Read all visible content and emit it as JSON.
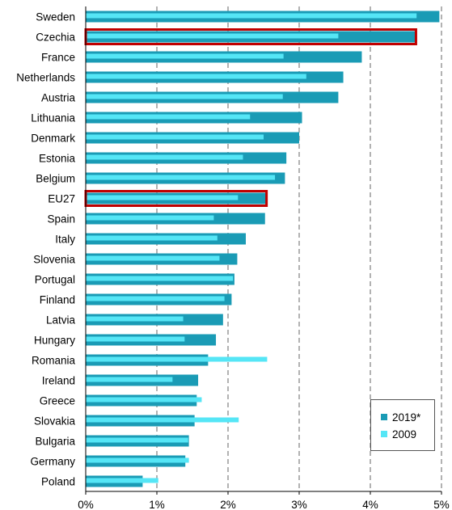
{
  "chart_data": {
    "type": "bar",
    "orientation": "horizontal",
    "categories": [
      "Sweden",
      "Czechia",
      "France",
      "Netherlands",
      "Austria",
      "Lithuania",
      "Denmark",
      "Estonia",
      "Belgium",
      "EU27",
      "Spain",
      "Italy",
      "Slovenia",
      "Portugal",
      "Finland",
      "Latvia",
      "Hungary",
      "Romania",
      "Ireland",
      "Greece",
      "Slovakia",
      "Bulgaria",
      "Germany",
      "Poland"
    ],
    "highlighted": [
      "Czechia",
      "EU27"
    ],
    "series": [
      {
        "name": "2019*",
        "color": "#1a9bb5",
        "values": [
          4.97,
          4.63,
          3.88,
          3.62,
          3.55,
          3.04,
          3.0,
          2.82,
          2.8,
          2.53,
          2.52,
          2.25,
          2.13,
          2.09,
          2.05,
          1.93,
          1.83,
          1.72,
          1.58,
          1.56,
          1.53,
          1.45,
          1.4,
          0.8
        ]
      },
      {
        "name": "2009",
        "color": "#55e6f6",
        "values": [
          4.65,
          3.55,
          2.78,
          3.1,
          2.77,
          2.31,
          2.5,
          2.21,
          2.66,
          2.14,
          1.8,
          1.85,
          1.88,
          2.07,
          1.95,
          1.37,
          1.39,
          2.55,
          1.22,
          1.63,
          2.15,
          1.44,
          1.45,
          1.02
        ]
      }
    ],
    "x_ticks": [
      "0%",
      "1%",
      "2%",
      "3%",
      "4%",
      "5%"
    ],
    "xlim": [
      0,
      5
    ],
    "grid": "vertical dashed",
    "legend_position": "bottom-right",
    "highlight_color": "#c00000"
  }
}
